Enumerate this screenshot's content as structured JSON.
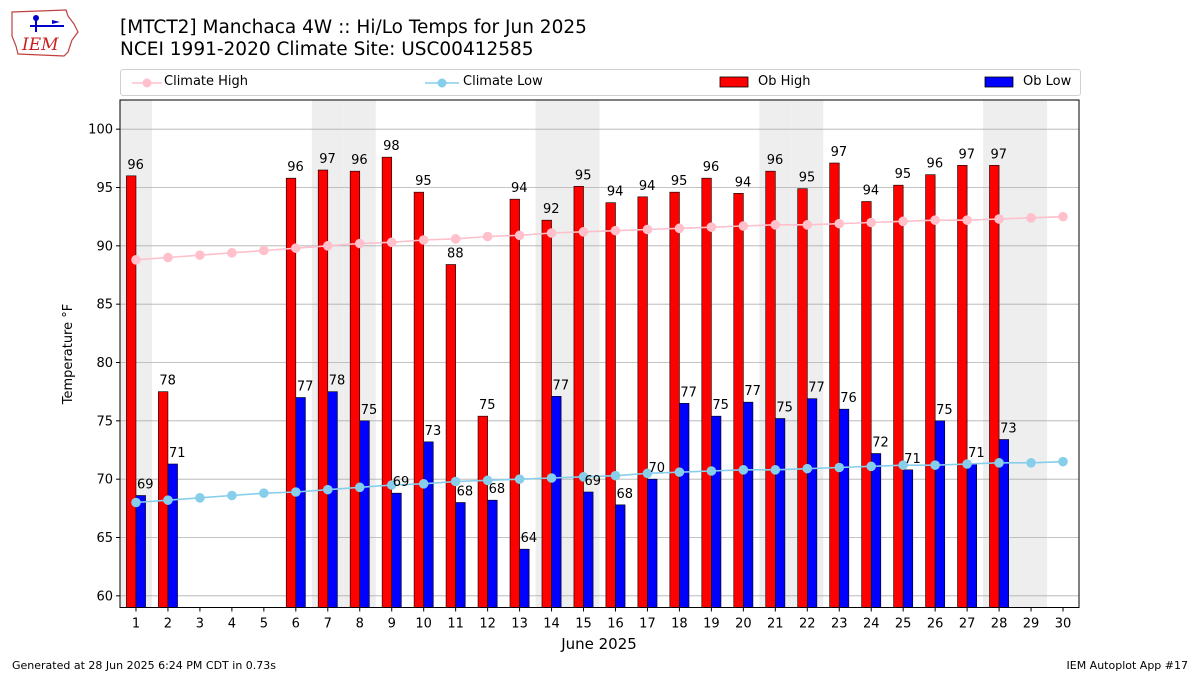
{
  "header": {
    "title_line1": "[MTCT2] Manchaca 4W :: Hi/Lo Temps for Jun 2025",
    "title_line2": "NCEI 1991-2020 Climate Site: USC00412585"
  },
  "logo": {
    "text": "IEM"
  },
  "footer": {
    "generated": "Generated at 28 Jun 2025 6:24 PM CDT in 0.73s",
    "app": "IEM Autoplot App #17"
  },
  "colors": {
    "climate_high": "#ffc0cb",
    "climate_low": "#87ceeb",
    "ob_high": "#ff0000",
    "ob_low": "#0000ff",
    "weekend_shade": "#eeeeee",
    "grid": "#b0b0b0"
  },
  "chart_data": {
    "type": "bar",
    "title": "[MTCT2] Manchaca 4W :: Hi/Lo Temps for Jun 2025",
    "xlabel": "June 2025",
    "ylabel": "Temperature °F",
    "ylim": [
      59,
      102.5
    ],
    "yticks": [
      60,
      65,
      70,
      75,
      80,
      85,
      90,
      95,
      100
    ],
    "grid": true,
    "legend_position": "top",
    "categories": [
      1,
      2,
      3,
      4,
      5,
      6,
      7,
      8,
      9,
      10,
      11,
      12,
      13,
      14,
      15,
      16,
      17,
      18,
      19,
      20,
      21,
      22,
      23,
      24,
      25,
      26,
      27,
      28,
      29,
      30
    ],
    "shaded_days": [
      1,
      7,
      8,
      14,
      15,
      21,
      22,
      28,
      29
    ],
    "series": [
      {
        "name": "Ob High",
        "kind": "bar",
        "labels": [
          96,
          78,
          null,
          null,
          null,
          96,
          97,
          96,
          98,
          95,
          88,
          75,
          94,
          92,
          95,
          94,
          94,
          95,
          96,
          94,
          96,
          95,
          97,
          94,
          95,
          96,
          97,
          97,
          null,
          null
        ],
        "values": [
          96.0,
          77.5,
          null,
          null,
          null,
          95.8,
          96.5,
          96.4,
          97.6,
          94.6,
          88.4,
          75.4,
          94.0,
          92.2,
          95.1,
          93.7,
          94.2,
          94.6,
          95.8,
          94.5,
          96.4,
          94.9,
          97.1,
          93.8,
          95.2,
          96.1,
          96.9,
          96.9,
          null,
          null
        ]
      },
      {
        "name": "Ob Low",
        "kind": "bar",
        "labels": [
          69,
          71,
          null,
          null,
          null,
          77,
          78,
          75,
          69,
          73,
          68,
          68,
          64,
          77,
          69,
          68,
          70,
          77,
          75,
          77,
          75,
          77,
          76,
          72,
          71,
          75,
          71,
          73,
          null,
          null
        ],
        "values": [
          68.6,
          71.3,
          null,
          null,
          null,
          77.0,
          77.5,
          75.0,
          68.8,
          73.2,
          68.0,
          68.2,
          64.0,
          77.1,
          68.9,
          67.8,
          70.0,
          76.5,
          75.4,
          76.6,
          75.2,
          76.9,
          76.0,
          72.2,
          70.8,
          75.0,
          71.3,
          73.4,
          null,
          null
        ]
      },
      {
        "name": "Climate High",
        "kind": "line",
        "values": [
          88.8,
          89.0,
          89.2,
          89.4,
          89.6,
          89.8,
          90.0,
          90.2,
          90.3,
          90.5,
          90.6,
          90.8,
          90.9,
          91.1,
          91.2,
          91.3,
          91.4,
          91.5,
          91.6,
          91.7,
          91.8,
          91.8,
          91.9,
          92.0,
          92.1,
          92.2,
          92.2,
          92.3,
          92.4,
          92.5
        ]
      },
      {
        "name": "Climate Low",
        "kind": "line",
        "values": [
          68.0,
          68.2,
          68.4,
          68.6,
          68.8,
          68.9,
          69.1,
          69.3,
          69.5,
          69.6,
          69.8,
          69.9,
          70.0,
          70.1,
          70.2,
          70.3,
          70.5,
          70.6,
          70.7,
          70.8,
          70.8,
          70.9,
          71.0,
          71.1,
          71.2,
          71.2,
          71.3,
          71.4,
          71.4,
          71.5
        ]
      }
    ]
  }
}
